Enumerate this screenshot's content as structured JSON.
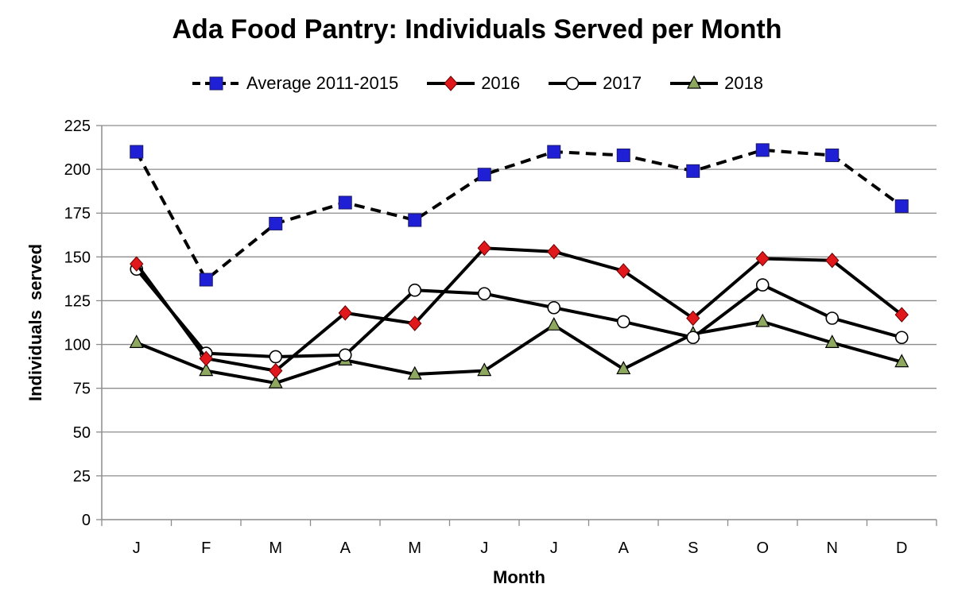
{
  "chart_data": {
    "type": "line",
    "title": "Ada Food Pantry: Individuals Served per Month",
    "xlabel": "Month",
    "ylabel": "Individuals  served",
    "categories": [
      "J",
      "F",
      "M",
      "A",
      "M",
      "J",
      "J",
      "A",
      "S",
      "O",
      "N",
      "D"
    ],
    "ylim": [
      0,
      225
    ],
    "yticks": [
      0,
      25,
      50,
      75,
      100,
      125,
      150,
      175,
      200,
      225
    ],
    "grid": true,
    "legend_position": "top",
    "series": [
      {
        "name": "Average 2011-2015",
        "line_style": "dashed",
        "marker": "square",
        "marker_color": "#1f1fd6",
        "values": [
          210,
          137,
          169,
          181,
          171,
          197,
          210,
          208,
          199,
          211,
          208,
          179
        ]
      },
      {
        "name": "2016",
        "line_style": "solid",
        "marker": "diamond",
        "marker_color": "#e0181b",
        "values": [
          146,
          92,
          85,
          118,
          112,
          155,
          153,
          142,
          115,
          149,
          148,
          117
        ]
      },
      {
        "name": "2017",
        "line_style": "solid",
        "marker": "circle",
        "marker_color": "#ffffff",
        "values": [
          143,
          95,
          93,
          94,
          131,
          129,
          121,
          113,
          104,
          134,
          115,
          104
        ]
      },
      {
        "name": "2018",
        "line_style": "solid",
        "marker": "triangle",
        "marker_color": "#8fa860",
        "values": [
          101,
          85,
          78,
          91,
          83,
          85,
          111,
          86,
          106,
          113,
          101,
          90
        ]
      }
    ]
  }
}
